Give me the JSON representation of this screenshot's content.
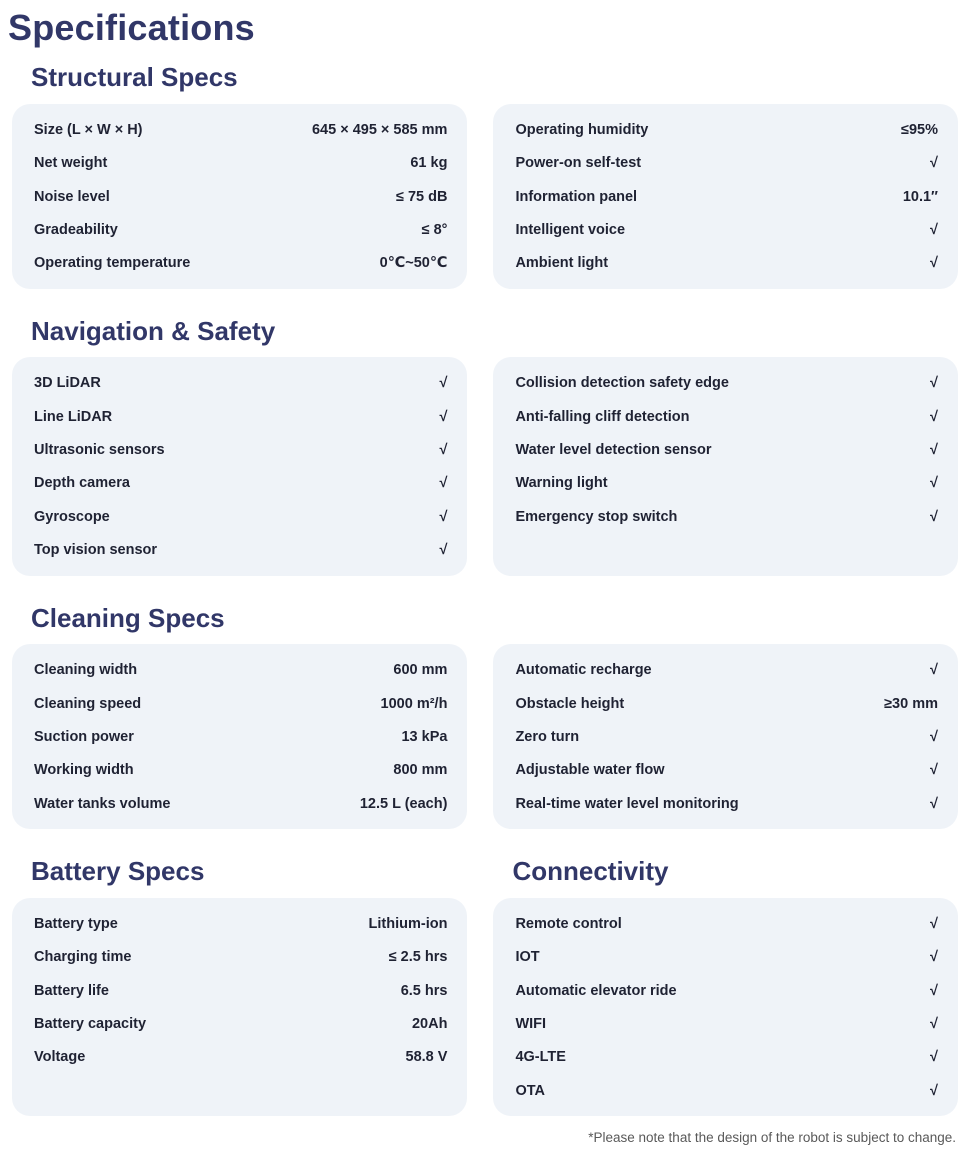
{
  "page": {
    "title": "Specifications",
    "footnote": "*Please note that the design of the robot is subject to change."
  },
  "colors": {
    "heading": "#313768",
    "text": "#1f2233",
    "card_bg": "#eff3f8",
    "footnote": "#595959"
  },
  "check_mark": "√",
  "sections": [
    {
      "heading": "Structural Specs",
      "cards": [
        [
          {
            "label": "Size (L × W × H)",
            "value": "645 × 495 × 585 mm"
          },
          {
            "label": "Net weight",
            "value": "61 kg"
          },
          {
            "label": "Noise level",
            "value": "≤ 75 dB"
          },
          {
            "label": "Gradeability",
            "value": "≤ 8°"
          },
          {
            "label": "Operating temperature",
            "value": "0℃~50℃"
          }
        ],
        [
          {
            "label": "Operating humidity",
            "value": "≤95%"
          },
          {
            "label": "Power-on self-test",
            "value": "√"
          },
          {
            "label": "Information panel",
            "value": "10.1″"
          },
          {
            "label": "Intelligent voice",
            "value": "√"
          },
          {
            "label": "Ambient light",
            "value": "√"
          }
        ]
      ]
    },
    {
      "heading": "Navigation & Safety",
      "cards": [
        [
          {
            "label": "3D LiDAR",
            "value": "√"
          },
          {
            "label": "Line LiDAR",
            "value": "√"
          },
          {
            "label": "Ultrasonic sensors",
            "value": "√"
          },
          {
            "label": "Depth camera",
            "value": "√"
          },
          {
            "label": "Gyroscope",
            "value": "√"
          },
          {
            "label": "Top vision sensor",
            "value": "√"
          }
        ],
        [
          {
            "label": "Collision detection safety edge",
            "value": "√"
          },
          {
            "label": "Anti-falling cliff detection",
            "value": "√"
          },
          {
            "label": "Water level detection sensor",
            "value": "√"
          },
          {
            "label": "Warning light",
            "value": "√"
          },
          {
            "label": "Emergency stop switch",
            "value": "√"
          }
        ]
      ]
    },
    {
      "heading": "Cleaning Specs",
      "cards": [
        [
          {
            "label": "Cleaning width",
            "value": "600 mm"
          },
          {
            "label": "Cleaning speed",
            "value": "1000 m²/h"
          },
          {
            "label": "Suction power",
            "value": "13 kPa"
          },
          {
            "label": "Working width",
            "value": "800 mm"
          },
          {
            "label": "Water tanks volume",
            "value": "12.5 L (each)"
          }
        ],
        [
          {
            "label": "Automatic recharge",
            "value": "√"
          },
          {
            "label": "Obstacle height",
            "value": "≥30 mm"
          },
          {
            "label": "Zero turn",
            "value": "√"
          },
          {
            "label": "Adjustable water flow",
            "value": "√"
          },
          {
            "label": "Real-time water level monitoring",
            "value": "√"
          }
        ]
      ]
    }
  ],
  "bottom_sections": [
    {
      "heading": "Battery Specs",
      "rows": [
        {
          "label": "Battery type",
          "value": "Lithium-ion"
        },
        {
          "label": "Charging time",
          "value": "≤ 2.5 hrs"
        },
        {
          "label": "Battery life",
          "value": "6.5 hrs"
        },
        {
          "label": "Battery capacity",
          "value": "20Ah"
        },
        {
          "label": "Voltage",
          "value": "58.8 V"
        }
      ]
    },
    {
      "heading": "Connectivity",
      "rows": [
        {
          "label": "Remote control",
          "value": "√"
        },
        {
          "label": "IOT",
          "value": "√"
        },
        {
          "label": "Automatic elevator ride",
          "value": "√"
        },
        {
          "label": "WIFI",
          "value": "√"
        },
        {
          "label": "4G-LTE",
          "value": "√"
        },
        {
          "label": "OTA",
          "value": "√"
        }
      ]
    }
  ]
}
